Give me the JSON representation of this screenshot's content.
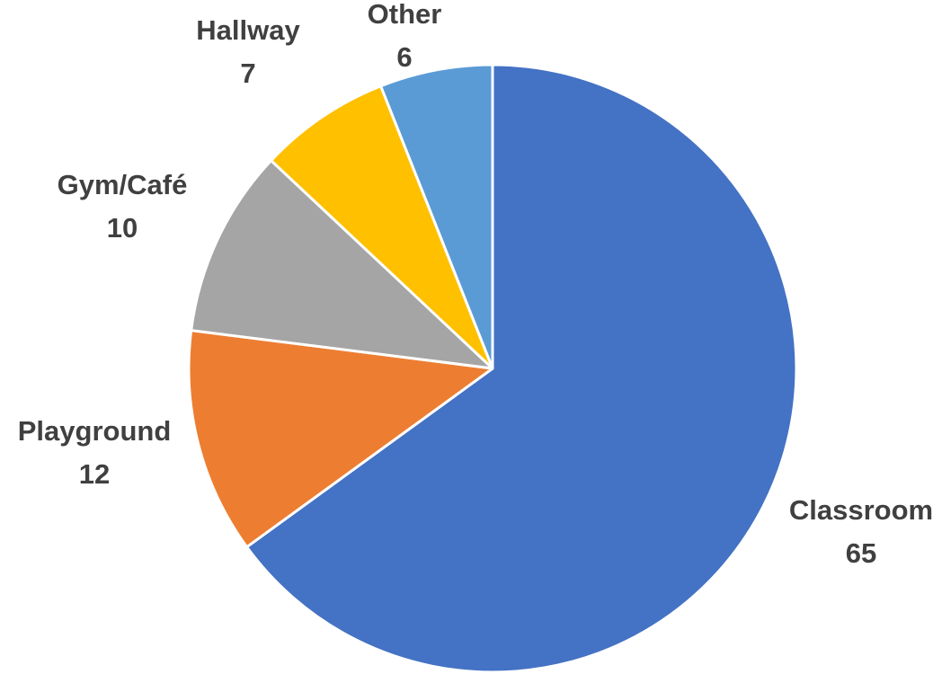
{
  "chart_data": {
    "type": "pie",
    "title": "",
    "start_angle_deg": 0,
    "direction": "clockwise",
    "slices": [
      {
        "name": "Classroom",
        "value": 65,
        "color": "#4472C4"
      },
      {
        "name": "Playground",
        "value": 12,
        "color": "#ED7D31"
      },
      {
        "name": "Gym/Café",
        "value": 10,
        "color": "#A5A5A5"
      },
      {
        "name": "Hallway",
        "value": 7,
        "color": "#FFC000"
      },
      {
        "name": "Other",
        "value": 6,
        "color": "#5B9BD5"
      }
    ],
    "legend": "none",
    "data_labels": "category name and value"
  }
}
